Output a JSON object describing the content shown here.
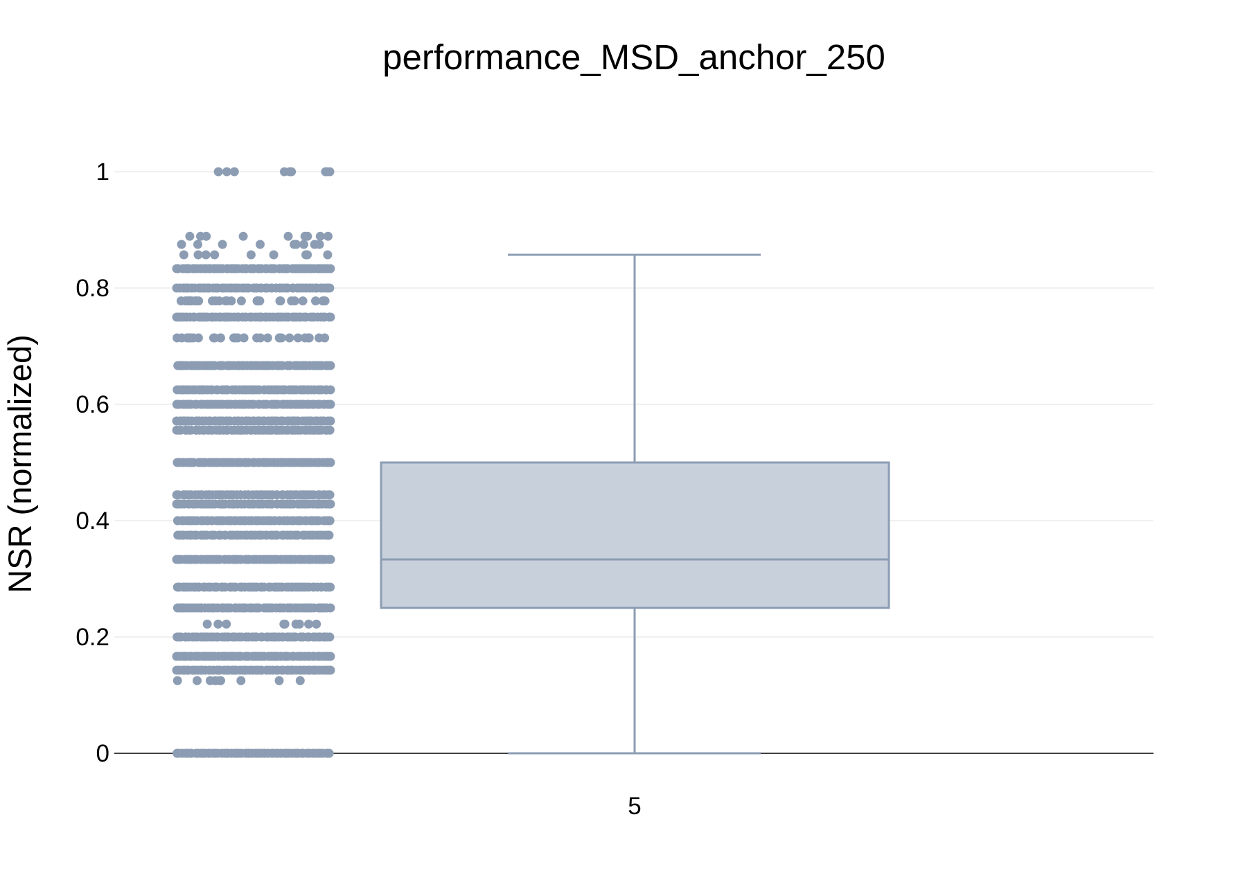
{
  "chart_data": {
    "type": "box",
    "title": "performance_MSD_anchor_250",
    "xlabel": "",
    "ylabel": "NSR (normalized)",
    "categories": [
      "5"
    ],
    "ylim": [
      0,
      1
    ],
    "yticks": [
      {
        "value": 0,
        "label": "0"
      },
      {
        "value": 0.2,
        "label": "0.2"
      },
      {
        "value": 0.4,
        "label": "0.4"
      },
      {
        "value": 0.6,
        "label": "0.6"
      },
      {
        "value": 0.8,
        "label": "0.8"
      },
      {
        "value": 1,
        "label": "1"
      }
    ],
    "grid": true,
    "box": {
      "category": "5",
      "min": 0,
      "q1": 0.25,
      "median": 0.3333,
      "q3": 0.5,
      "max": 0.8571
    },
    "points_shown": "all",
    "point_levels": [
      {
        "y": 0,
        "density": "dense"
      },
      {
        "y": 0.125,
        "density": "sparse"
      },
      {
        "y": 0.1429,
        "density": "dense"
      },
      {
        "y": 0.1667,
        "density": "dense"
      },
      {
        "y": 0.2,
        "density": "dense"
      },
      {
        "y": 0.2222,
        "density": "sparse"
      },
      {
        "y": 0.25,
        "density": "dense"
      },
      {
        "y": 0.2857,
        "density": "dense"
      },
      {
        "y": 0.3333,
        "density": "dense"
      },
      {
        "y": 0.375,
        "density": "dense"
      },
      {
        "y": 0.4,
        "density": "dense"
      },
      {
        "y": 0.4286,
        "density": "dense"
      },
      {
        "y": 0.4444,
        "density": "dense"
      },
      {
        "y": 0.5,
        "density": "dense"
      },
      {
        "y": 0.5556,
        "density": "dense"
      },
      {
        "y": 0.5714,
        "density": "dense"
      },
      {
        "y": 0.6,
        "density": "dense"
      },
      {
        "y": 0.625,
        "density": "dense"
      },
      {
        "y": 0.6667,
        "density": "dense"
      },
      {
        "y": 0.7143,
        "density": "medium"
      },
      {
        "y": 0.75,
        "density": "dense"
      },
      {
        "y": 0.7778,
        "density": "medium"
      },
      {
        "y": 0.8,
        "density": "dense"
      },
      {
        "y": 0.8333,
        "density": "dense"
      },
      {
        "y": 0.8571,
        "density": "sparse"
      },
      {
        "y": 0.875,
        "density": "sparse"
      },
      {
        "y": 0.8889,
        "density": "sparse"
      },
      {
        "y": 1,
        "density": "sparse"
      }
    ],
    "colors": {
      "points": "#8c9db3",
      "box_line": "#8c9db3",
      "box_fill": "#c8d0dc",
      "grid": "#ebebeb",
      "zero_line": "#000000"
    }
  }
}
